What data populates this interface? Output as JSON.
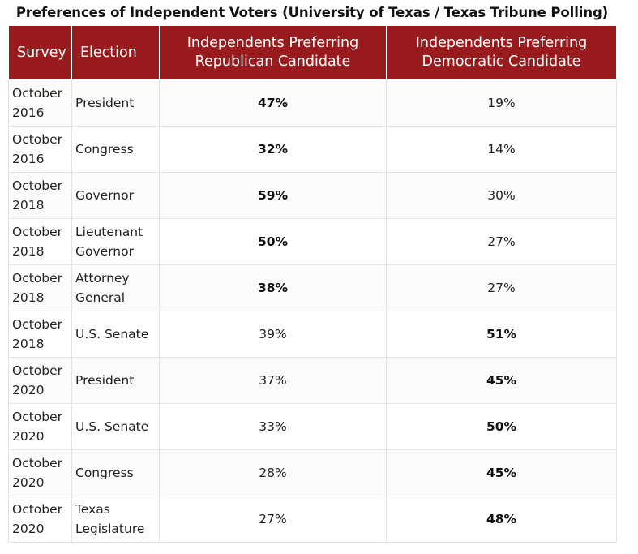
{
  "title": "Preferences of Independent Voters (University of Texas / Texas Tribune Polling)",
  "columns": {
    "survey": "Survey",
    "election": "Election",
    "republican": "Independents Preferring Republican Candidate",
    "democratic": "Independents Preferring Democratic Candidate"
  },
  "rows": [
    {
      "survey": "October 2016",
      "election": "President",
      "republican": "47%",
      "democratic": "19%",
      "winner": "republican"
    },
    {
      "survey": "October 2016",
      "election": "Congress",
      "republican": "32%",
      "democratic": "14%",
      "winner": "republican"
    },
    {
      "survey": "October 2018",
      "election": "Governor",
      "republican": "59%",
      "democratic": "30%",
      "winner": "republican"
    },
    {
      "survey": "October 2018",
      "election": "Lieutenant Governor",
      "republican": "50%",
      "democratic": "27%",
      "winner": "republican"
    },
    {
      "survey": "October 2018",
      "election": "Attorney General",
      "republican": "38%",
      "democratic": "27%",
      "winner": "republican"
    },
    {
      "survey": "October 2018",
      "election": "U.S. Senate",
      "republican": "39%",
      "democratic": "51%",
      "winner": "democratic"
    },
    {
      "survey": "October 2020",
      "election": "President",
      "republican": "37%",
      "democratic": "45%",
      "winner": "democratic"
    },
    {
      "survey": "October 2020",
      "election": "U.S. Senate",
      "republican": "33%",
      "democratic": "50%",
      "winner": "democratic"
    },
    {
      "survey": "October 2020",
      "election": "Congress",
      "republican": "28%",
      "democratic": "45%",
      "winner": "democratic"
    },
    {
      "survey": "October 2020",
      "election": "Texas Legislature",
      "republican": "27%",
      "democratic": "48%",
      "winner": "democratic"
    }
  ],
  "colors": {
    "header_bg": "#9a1b1e",
    "header_text": "#ffffff"
  }
}
